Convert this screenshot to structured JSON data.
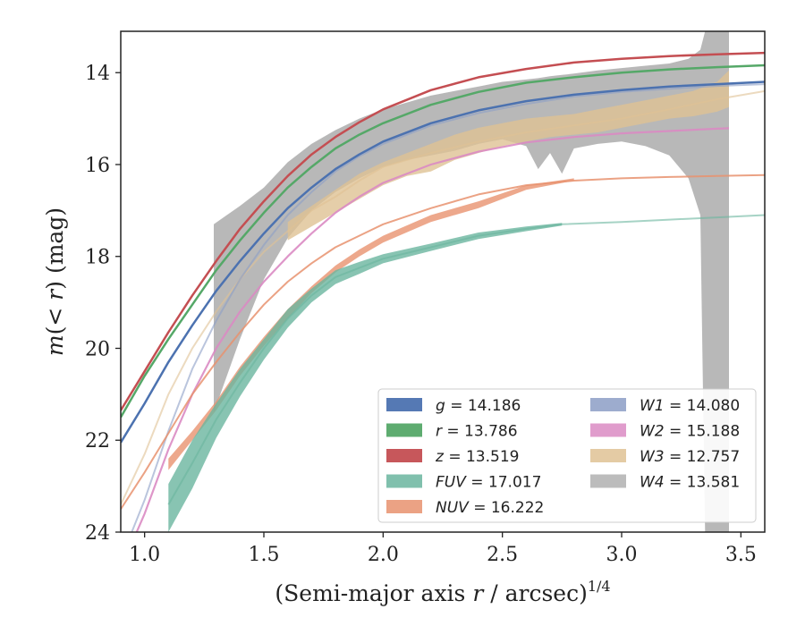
{
  "chart_data": {
    "type": "line",
    "title": "",
    "xlabel": "(Semi-major axis r / arcsec)^1/4",
    "xlabel_main": "(Semi-major axis ",
    "xlabel_var": "r",
    "xlabel_unit": " / arcsec)",
    "xlabel_exp": "1/4",
    "ylabel": "m(< r) (mag)",
    "ylabel_main": "m",
    "ylabel_mid": "(< ",
    "ylabel_var": "r",
    "ylabel_unit": ") (mag)",
    "xlim": [
      0.9,
      3.6
    ],
    "ylim": [
      24,
      13.1
    ],
    "y_inverted": true,
    "xticks": [
      1.0,
      1.5,
      2.0,
      2.5,
      3.0,
      3.5
    ],
    "xtick_labels": [
      "1.0",
      "1.5",
      "2.0",
      "2.5",
      "3.0",
      "3.5"
    ],
    "yticks": [
      14,
      16,
      18,
      20,
      22,
      24
    ],
    "ytick_labels": [
      "14",
      "16",
      "18",
      "20",
      "22",
      "24"
    ],
    "grid": false,
    "legend_position": "lower-right",
    "series": [
      {
        "name": "g = 14.186",
        "band": "g",
        "value": "14.186",
        "color": "#4c72b0",
        "x": [
          0.9,
          1.0,
          1.1,
          1.2,
          1.3,
          1.4,
          1.5,
          1.6,
          1.7,
          1.8,
          1.9,
          2.0,
          2.2,
          2.4,
          2.6,
          2.8,
          3.0,
          3.2,
          3.4,
          3.6
        ],
        "y": [
          22.05,
          21.2,
          20.3,
          19.5,
          18.75,
          18.1,
          17.5,
          16.95,
          16.5,
          16.1,
          15.78,
          15.5,
          15.1,
          14.82,
          14.62,
          14.48,
          14.38,
          14.3,
          14.25,
          14.2
        ],
        "band_x": [],
        "band_lo": [],
        "band_hi": []
      },
      {
        "name": "r = 13.786",
        "band": "r",
        "value": "13.786",
        "color": "#55a868",
        "x": [
          0.9,
          1.0,
          1.1,
          1.2,
          1.3,
          1.4,
          1.5,
          1.6,
          1.7,
          1.8,
          1.9,
          2.0,
          2.2,
          2.4,
          2.6,
          2.8,
          3.0,
          3.2,
          3.4,
          3.6
        ],
        "y": [
          21.5,
          20.6,
          19.8,
          19.05,
          18.3,
          17.65,
          17.05,
          16.5,
          16.05,
          15.65,
          15.35,
          15.1,
          14.7,
          14.42,
          14.22,
          14.1,
          14.0,
          13.93,
          13.88,
          13.84
        ],
        "band_x": [],
        "band_lo": [],
        "band_hi": []
      },
      {
        "name": "z = 13.519",
        "band": "z",
        "value": "13.519",
        "color": "#c44e52",
        "x": [
          0.9,
          1.0,
          1.1,
          1.2,
          1.3,
          1.4,
          1.5,
          1.6,
          1.7,
          1.8,
          1.9,
          2.0,
          2.2,
          2.4,
          2.6,
          2.8,
          3.0,
          3.2,
          3.4,
          3.6
        ],
        "y": [
          21.35,
          20.5,
          19.65,
          18.85,
          18.1,
          17.4,
          16.8,
          16.25,
          15.78,
          15.4,
          15.08,
          14.8,
          14.38,
          14.1,
          13.92,
          13.78,
          13.7,
          13.64,
          13.6,
          13.57
        ],
        "band_x": [],
        "band_lo": [],
        "band_hi": []
      },
      {
        "name": "FUV = 17.017",
        "band": "FUV",
        "value": "17.017",
        "color": "#6ab59f",
        "x": [
          1.1,
          1.2,
          1.3,
          1.4,
          1.5,
          1.6,
          1.7,
          1.8,
          1.9,
          2.0,
          2.2,
          2.4,
          2.6,
          2.75,
          3.0,
          3.2,
          3.4,
          3.6
        ],
        "y": [
          23.4,
          22.5,
          21.55,
          20.75,
          20.0,
          19.35,
          18.85,
          18.45,
          18.25,
          18.05,
          17.8,
          17.55,
          17.4,
          17.3,
          17.25,
          17.2,
          17.15,
          17.1
        ],
        "band_x": [
          1.1,
          1.2,
          1.3,
          1.4,
          1.5,
          1.6,
          1.7,
          1.8,
          1.9,
          2.0,
          2.2,
          2.4,
          2.6,
          2.75
        ],
        "band_lo": [
          22.95,
          22.0,
          21.2,
          20.45,
          19.8,
          19.15,
          18.7,
          18.3,
          18.12,
          17.95,
          17.72,
          17.48,
          17.35,
          17.27
        ],
        "band_hi": [
          24.0,
          23.05,
          21.95,
          21.05,
          20.25,
          19.55,
          19.0,
          18.6,
          18.38,
          18.15,
          17.88,
          17.62,
          17.45,
          17.33
        ]
      },
      {
        "name": "NUV = 16.222",
        "band": "NUV",
        "value": "16.222",
        "color": "#e8926f",
        "x": [
          0.9,
          1.0,
          1.1,
          1.2,
          1.3,
          1.4,
          1.5,
          1.6,
          1.7,
          1.8,
          1.9,
          2.0,
          2.2,
          2.4,
          2.6,
          2.8,
          3.0,
          3.2,
          3.4,
          3.6
        ],
        "y": [
          23.5,
          22.7,
          21.85,
          21.0,
          20.3,
          19.65,
          19.05,
          18.55,
          18.15,
          17.8,
          17.55,
          17.3,
          16.95,
          16.65,
          16.45,
          16.35,
          16.3,
          16.27,
          16.25,
          16.23
        ],
        "band_x": [
          1.1,
          1.2,
          1.3,
          1.4,
          1.5,
          1.6,
          1.7,
          1.8,
          1.9,
          2.0,
          2.2,
          2.4,
          2.6,
          2.8
        ],
        "band_lo": [
          22.4,
          21.8,
          21.15,
          20.4,
          19.75,
          19.15,
          18.65,
          18.2,
          17.85,
          17.55,
          17.1,
          16.8,
          16.45,
          16.3
        ],
        "band_hi": [
          22.65,
          22.0,
          21.35,
          20.6,
          19.95,
          19.35,
          18.8,
          18.35,
          18.0,
          17.7,
          17.25,
          16.95,
          16.55,
          16.35
        ]
      },
      {
        "name": "W1 = 14.080",
        "band": "W1",
        "value": "14.080",
        "color": "#8c9ec6",
        "x": [
          0.9,
          1.0,
          1.1,
          1.2,
          1.3,
          1.4,
          1.5,
          1.6,
          1.7,
          1.8,
          1.9,
          2.0,
          2.2,
          2.4,
          2.6,
          2.8,
          3.0,
          3.2,
          3.4,
          3.6
        ],
        "y": [
          24.6,
          23.3,
          21.8,
          20.45,
          19.4,
          18.5,
          17.75,
          17.1,
          16.6,
          16.15,
          15.82,
          15.55,
          15.15,
          14.88,
          14.68,
          14.52,
          14.42,
          14.35,
          14.29,
          14.25
        ],
        "band_x": [],
        "band_lo": [],
        "band_hi": []
      },
      {
        "name": "W2 = 15.188",
        "band": "W2",
        "value": "15.188",
        "color": "#da8bc3",
        "x": [
          0.9,
          1.0,
          1.1,
          1.2,
          1.3,
          1.4,
          1.5,
          1.6,
          1.7,
          1.8,
          1.9,
          2.0,
          2.2,
          2.4,
          2.6,
          2.8,
          3.0,
          3.2,
          3.4,
          3.45
        ],
        "y": [
          24.8,
          23.6,
          22.2,
          21.0,
          20.0,
          19.2,
          18.55,
          18.0,
          17.5,
          17.05,
          16.7,
          16.4,
          16.0,
          15.72,
          15.52,
          15.4,
          15.32,
          15.27,
          15.22,
          15.21
        ],
        "band_x": [],
        "band_lo": [],
        "band_hi": []
      },
      {
        "name": "W3 = 12.757",
        "band": "W3",
        "value": "12.757",
        "color": "#dfc294",
        "x": [
          0.9,
          1.0,
          1.1,
          1.2,
          1.3,
          1.4,
          1.5,
          1.6,
          1.7,
          1.8,
          1.9,
          2.0,
          2.2,
          2.4,
          2.6,
          2.8,
          3.0,
          3.2,
          3.4,
          3.6
        ],
        "y": [
          23.4,
          22.3,
          21.0,
          20.0,
          19.2,
          18.5,
          17.9,
          17.45,
          17.0,
          16.7,
          16.35,
          16.05,
          15.75,
          15.5,
          15.3,
          15.15,
          15.0,
          14.8,
          14.58,
          14.4
        ],
        "band_x": [
          1.6,
          1.7,
          1.8,
          1.9,
          2.0,
          2.1,
          2.2,
          2.3,
          2.4,
          2.5,
          2.6,
          2.7,
          2.8,
          2.9,
          3.0,
          3.1,
          3.2,
          3.3,
          3.4,
          3.45
        ],
        "band_lo": [
          17.25,
          16.9,
          16.55,
          16.2,
          15.95,
          15.75,
          15.55,
          15.35,
          15.2,
          15.1,
          15.0,
          14.95,
          14.9,
          14.8,
          14.7,
          14.6,
          14.5,
          14.4,
          14.2,
          13.95
        ],
        "band_hi": [
          17.65,
          17.35,
          17.05,
          16.75,
          16.45,
          16.25,
          16.15,
          15.9,
          15.75,
          15.6,
          15.5,
          15.4,
          15.35,
          15.3,
          15.2,
          15.1,
          15.0,
          14.95,
          14.85,
          14.75
        ]
      },
      {
        "name": "W4 = 13.581",
        "band": "W4",
        "value": "13.581",
        "color": "#b0b0b0",
        "x": [],
        "y": [],
        "band_x": [
          1.29,
          1.4,
          1.5,
          1.6,
          1.7,
          1.8,
          1.9,
          2.0,
          2.1,
          2.2,
          2.3,
          2.4,
          2.5,
          2.6,
          2.65,
          2.7,
          2.75,
          2.8,
          2.9,
          3.0,
          3.1,
          3.2,
          3.28,
          3.33,
          3.35,
          3.4,
          3.45
        ],
        "band_lo": [
          17.3,
          16.9,
          16.5,
          15.95,
          15.55,
          15.25,
          15.0,
          14.8,
          14.65,
          14.5,
          14.4,
          14.3,
          14.2,
          14.15,
          14.12,
          14.08,
          14.05,
          14.02,
          13.95,
          13.9,
          13.85,
          13.8,
          13.7,
          13.5,
          13.1,
          13.1,
          13.1
        ],
        "band_hi": [
          21.4,
          19.8,
          18.5,
          17.6,
          17.0,
          16.6,
          16.3,
          16.05,
          15.9,
          15.8,
          15.7,
          15.55,
          15.45,
          15.6,
          16.1,
          15.75,
          16.2,
          15.65,
          15.55,
          15.5,
          15.6,
          15.8,
          16.3,
          17.1,
          24.0,
          24.0,
          24.0
        ]
      }
    ]
  }
}
